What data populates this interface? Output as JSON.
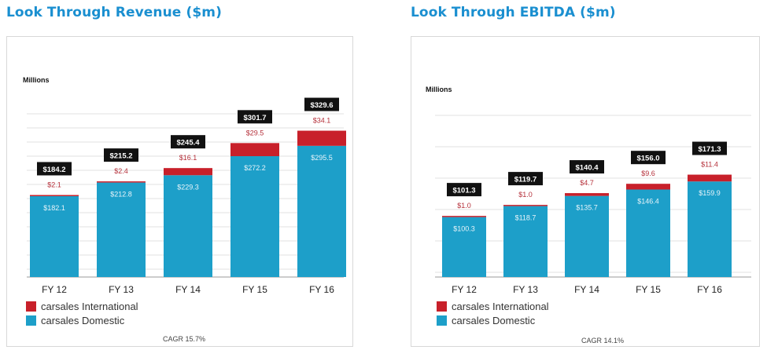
{
  "page": {
    "left_title": "Look Through Revenue ($m)",
    "right_title": "Look Through EBITDA ($m)"
  },
  "colors": {
    "domestic": "#1d9fc9",
    "international": "#c8202a",
    "total_box": "#111111",
    "intl_label": "#b5303a",
    "dom_label": "#e8f4fa",
    "title": "#1a8fd0"
  },
  "chart_data": [
    {
      "type": "bar",
      "stacked": true,
      "title": "Look Through Revenue ($m)",
      "ylabel": "Millions",
      "categories": [
        "FY 12",
        "FY 13",
        "FY 14",
        "FY 15",
        "FY 16"
      ],
      "series": [
        {
          "name": "carsales Domestic",
          "values": [
            182.1,
            212.8,
            229.3,
            272.2,
            295.5
          ],
          "labels": [
            "$182.1",
            "$212.8",
            "$229.3",
            "$272.2",
            "$295.5"
          ]
        },
        {
          "name": "carsales International",
          "values": [
            2.1,
            2.4,
            16.1,
            29.5,
            34.1
          ],
          "labels": [
            "$2.1",
            "$2.4",
            "$16.1",
            "$29.5",
            "$34.1"
          ]
        }
      ],
      "totals": [
        "$184.2",
        "$215.2",
        "$245.4",
        "$301.7",
        "$329.6"
      ],
      "ylim": [
        0,
        350
      ],
      "grid": true,
      "legend": "bottom-left",
      "footnote": "CAGR 15.7%"
    },
    {
      "type": "bar",
      "stacked": true,
      "title": "Look Through EBITDA ($m)",
      "ylabel": "Millions",
      "categories": [
        "FY 12",
        "FY 13",
        "FY 14",
        "FY 15",
        "FY 16"
      ],
      "series": [
        {
          "name": "carsales Domestic",
          "values": [
            100.3,
            118.7,
            135.7,
            146.4,
            159.9
          ],
          "labels": [
            "$100.3",
            "$118.7",
            "$135.7",
            "$146.4",
            "$159.9"
          ]
        },
        {
          "name": "carsales International",
          "values": [
            1.0,
            1.0,
            4.7,
            9.6,
            11.4
          ],
          "labels": [
            "$1.0",
            "$1.0",
            "$4.7",
            "$9.6",
            "$11.4"
          ]
        }
      ],
      "totals": [
        "$101.3",
        "$119.7",
        "$140.4",
        "$156.0",
        "$171.3"
      ],
      "ylim": [
        0,
        260
      ],
      "grid": true,
      "legend": "bottom-left",
      "footnote": "CAGR 14.1%"
    }
  ]
}
